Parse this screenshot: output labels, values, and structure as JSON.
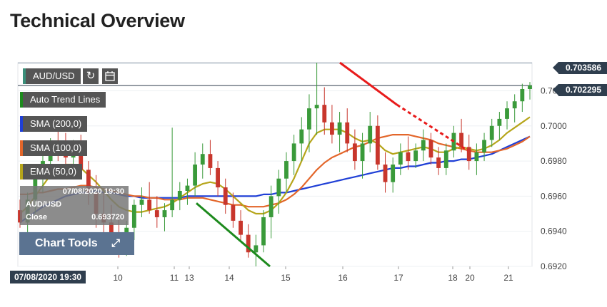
{
  "page": {
    "title": "Technical Overview"
  },
  "legend": {
    "symbol": "AUD/USD",
    "items": [
      {
        "label": "Auto Trend Lines",
        "color": "#1d8a1d"
      },
      {
        "label": "SMA (200,0)",
        "color": "#1f3fd6"
      },
      {
        "label": "SMA (100,0)",
        "color": "#e3662a"
      },
      {
        "label": "EMA (50,0)",
        "color": "#b6a51a"
      }
    ]
  },
  "info_panel": {
    "datetime": "07/08/2020 19:30",
    "symbol": "AUD/USD",
    "close_label": "Close",
    "close_value": "0.693720"
  },
  "chart_tools": {
    "label": "Chart Tools"
  },
  "crosshair": {
    "time_label": "07/08/2020 19:30"
  },
  "price_tags": {
    "high": "0.703586",
    "current": "0.702295"
  },
  "chart_data": {
    "type": "candlestick",
    "symbol": "AUD/USD",
    "y_axis": {
      "range": [
        0.692,
        0.7036
      ],
      "ticks": [
        "0.7020",
        "0.7000",
        "0.6980",
        "0.6960",
        "0.6940",
        "0.6920"
      ]
    },
    "x_axis": {
      "ticks": [
        "10",
        "11",
        "13",
        "14",
        "15",
        "16",
        "17",
        "18",
        "20",
        "21"
      ]
    },
    "ohlc": [
      [
        0.6952,
        0.6958,
        0.6942,
        0.6945
      ],
      [
        0.6945,
        0.6962,
        0.6938,
        0.6958
      ],
      [
        0.6958,
        0.6975,
        0.695,
        0.6972
      ],
      [
        0.6972,
        0.6985,
        0.6962,
        0.698
      ],
      [
        0.698,
        0.6993,
        0.6972,
        0.699
      ],
      [
        0.699,
        0.6998,
        0.698,
        0.6986
      ],
      [
        0.6986,
        0.6996,
        0.6976,
        0.6982
      ],
      [
        0.6982,
        0.6992,
        0.6972,
        0.6988
      ],
      [
        0.6988,
        0.6995,
        0.697,
        0.6975
      ],
      [
        0.6975,
        0.698,
        0.6955,
        0.6962
      ],
      [
        0.6962,
        0.6972,
        0.6942,
        0.695
      ],
      [
        0.695,
        0.6962,
        0.6935,
        0.6945
      ],
      [
        0.6945,
        0.6955,
        0.693,
        0.6938
      ],
      [
        0.6938,
        0.695,
        0.6925,
        0.6932
      ],
      [
        0.6932,
        0.6946,
        0.6926,
        0.6942
      ],
      [
        0.6942,
        0.6958,
        0.6935,
        0.6955
      ],
      [
        0.6955,
        0.6965,
        0.6948,
        0.6958
      ],
      [
        0.6958,
        0.6968,
        0.695,
        0.6952
      ],
      [
        0.6952,
        0.696,
        0.6942,
        0.6948
      ],
      [
        0.6948,
        0.6956,
        0.694,
        0.6952
      ],
      [
        0.6952,
        0.6999,
        0.6948,
        0.6958
      ],
      [
        0.6958,
        0.6968,
        0.6952,
        0.6963
      ],
      [
        0.6963,
        0.697,
        0.6955,
        0.6966
      ],
      [
        0.6966,
        0.6985,
        0.696,
        0.6978
      ],
      [
        0.6978,
        0.699,
        0.697,
        0.6984
      ],
      [
        0.6984,
        0.6992,
        0.6972,
        0.6976
      ],
      [
        0.6976,
        0.698,
        0.696,
        0.6965
      ],
      [
        0.6965,
        0.697,
        0.695,
        0.6955
      ],
      [
        0.6955,
        0.6962,
        0.6942,
        0.6946
      ],
      [
        0.6946,
        0.6952,
        0.6935,
        0.6938
      ],
      [
        0.6938,
        0.6944,
        0.6925,
        0.6928
      ],
      [
        0.6928,
        0.6938,
        0.692,
        0.6932
      ],
      [
        0.6932,
        0.6952,
        0.6928,
        0.6948
      ],
      [
        0.6948,
        0.6966,
        0.6936,
        0.696
      ],
      [
        0.696,
        0.6975,
        0.695,
        0.697
      ],
      [
        0.697,
        0.6985,
        0.6962,
        0.698
      ],
      [
        0.698,
        0.6995,
        0.6972,
        0.699
      ],
      [
        0.699,
        0.7005,
        0.698,
        0.6998
      ],
      [
        0.6998,
        0.7018,
        0.6985,
        0.701
      ],
      [
        0.701,
        0.7036,
        0.6995,
        0.7012
      ],
      [
        0.7012,
        0.7022,
        0.6995,
        0.7002
      ],
      [
        0.7002,
        0.7012,
        0.699,
        0.6995
      ],
      [
        0.6995,
        0.7008,
        0.6985,
        0.7002
      ],
      [
        0.7002,
        0.701,
        0.6985,
        0.699
      ],
      [
        0.699,
        0.6998,
        0.6975,
        0.698
      ],
      [
        0.698,
        0.6996,
        0.697,
        0.699
      ],
      [
        0.699,
        0.7008,
        0.6985,
        0.7
      ],
      [
        0.7,
        0.7006,
        0.6975,
        0.6978
      ],
      [
        0.6978,
        0.6985,
        0.6962,
        0.6968
      ],
      [
        0.6968,
        0.6982,
        0.6962,
        0.6978
      ],
      [
        0.6978,
        0.699,
        0.6972,
        0.6985
      ],
      [
        0.6985,
        0.6994,
        0.6975,
        0.698
      ],
      [
        0.698,
        0.699,
        0.6976,
        0.6986
      ],
      [
        0.6986,
        0.6998,
        0.698,
        0.6992
      ],
      [
        0.6992,
        0.6996,
        0.6978,
        0.6982
      ],
      [
        0.6982,
        0.6988,
        0.6972,
        0.6976
      ],
      [
        0.6976,
        0.699,
        0.6972,
        0.6986
      ],
      [
        0.6986,
        0.7,
        0.6982,
        0.6996
      ],
      [
        0.6996,
        0.7004,
        0.6985,
        0.6988
      ],
      [
        0.6988,
        0.6995,
        0.6975,
        0.698
      ],
      [
        0.698,
        0.699,
        0.6972,
        0.6985
      ],
      [
        0.6985,
        0.6996,
        0.698,
        0.6992
      ],
      [
        0.6992,
        0.7004,
        0.6988,
        0.7
      ],
      [
        0.7,
        0.7008,
        0.6992,
        0.7004
      ],
      [
        0.7004,
        0.7014,
        0.6998,
        0.701
      ],
      [
        0.701,
        0.7018,
        0.7002,
        0.7014
      ],
      [
        0.7014,
        0.7024,
        0.7008,
        0.7021
      ],
      [
        0.7021,
        0.7025,
        0.7015,
        0.7023
      ]
    ],
    "series": [
      {
        "name": "SMA (200,0)",
        "color": "#1f3fd6",
        "values": [
          0.6945,
          0.6948,
          0.6951,
          0.6954,
          0.6956,
          0.6958,
          0.696,
          0.6961,
          0.6962,
          0.6962,
          0.6963,
          0.6962,
          0.6962,
          0.6961,
          0.696,
          0.696,
          0.6959,
          0.6959,
          0.6959,
          0.6959,
          0.6959,
          0.6959,
          0.696,
          0.696,
          0.696,
          0.696,
          0.696,
          0.696,
          0.696,
          0.696,
          0.696,
          0.696,
          0.6961,
          0.6961,
          0.6962,
          0.6962,
          0.6963,
          0.6964,
          0.6965,
          0.6966,
          0.6967,
          0.6968,
          0.6969,
          0.697,
          0.6971,
          0.6972,
          0.6973,
          0.6974,
          0.6975,
          0.6976,
          0.6976,
          0.6977,
          0.6977,
          0.6978,
          0.6979,
          0.6979,
          0.698,
          0.698,
          0.6981,
          0.6981,
          0.6982,
          0.6983,
          0.6984,
          0.6986,
          0.6988,
          0.699,
          0.6992,
          0.6994
        ]
      },
      {
        "name": "SMA (100,0)",
        "color": "#e3662a",
        "values": [
          0.6961,
          0.6961,
          0.6962,
          0.6962,
          0.6963,
          0.6964,
          0.6964,
          0.6965,
          0.6966,
          0.6966,
          0.6965,
          0.6964,
          0.6963,
          0.6962,
          0.6961,
          0.696,
          0.696,
          0.6959,
          0.6959,
          0.6958,
          0.6958,
          0.6958,
          0.6959,
          0.6959,
          0.6959,
          0.6958,
          0.6957,
          0.6956,
          0.6955,
          0.6955,
          0.6954,
          0.6954,
          0.6954,
          0.6955,
          0.6956,
          0.6958,
          0.6961,
          0.6965,
          0.697,
          0.6975,
          0.6979,
          0.6982,
          0.6984,
          0.6986,
          0.6988,
          0.6989,
          0.6991,
          0.6993,
          0.6994,
          0.6995,
          0.6995,
          0.6995,
          0.6994,
          0.6993,
          0.6992,
          0.699,
          0.6989,
          0.6988,
          0.6987,
          0.6986,
          0.6985,
          0.6985,
          0.6985,
          0.6986,
          0.6987,
          0.6989,
          0.6991,
          0.6994
        ]
      },
      {
        "name": "EMA (50,0)",
        "color": "#b6a51a",
        "values": [
          0.695,
          0.6954,
          0.696,
          0.6966,
          0.6972,
          0.6976,
          0.6978,
          0.6978,
          0.6976,
          0.6972,
          0.6968,
          0.6963,
          0.6958,
          0.6954,
          0.6952,
          0.6951,
          0.6951,
          0.6952,
          0.6953,
          0.6954,
          0.6956,
          0.6959,
          0.6962,
          0.6965,
          0.6967,
          0.6968,
          0.6967,
          0.6964,
          0.696,
          0.6956,
          0.6952,
          0.695,
          0.695,
          0.6952,
          0.6956,
          0.6962,
          0.697,
          0.698,
          0.699,
          0.6996,
          0.6998,
          0.6998,
          0.6998,
          0.6996,
          0.6993,
          0.6991,
          0.6992,
          0.699,
          0.6986,
          0.6984,
          0.6985,
          0.6986,
          0.6987,
          0.6988,
          0.6987,
          0.6985,
          0.6985,
          0.6987,
          0.6988,
          0.6987,
          0.6986,
          0.6987,
          0.6989,
          0.6992,
          0.6996,
          0.6999,
          0.7002,
          0.7005
        ]
      }
    ],
    "trend_lines": [
      {
        "color": "#1d8a1d",
        "dashed": false,
        "from": [
          0.6956
        ],
        "to": [
          0.692
        ]
      },
      {
        "color": "#e81b1b",
        "dashed": false,
        "from": [
          0.7036
        ],
        "to": [
          0.7012
        ]
      },
      {
        "color": "#e81b1b",
        "dashed": true,
        "from": [
          0.7012
        ],
        "to": [
          0.6986
        ]
      }
    ],
    "horizontal_lines": [
      {
        "value": 0.703586,
        "color": "#8899aa"
      },
      {
        "value": 0.702295,
        "color": "#2f3e4e"
      }
    ],
    "up_color": "#3a9a3a",
    "down_color": "#c8362c",
    "grid": true
  }
}
